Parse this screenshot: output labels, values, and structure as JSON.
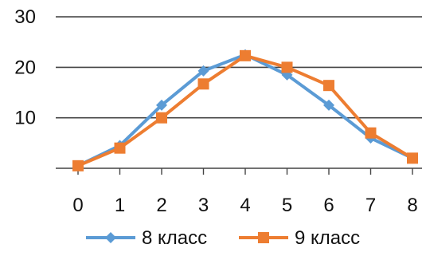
{
  "chart_data": {
    "type": "line",
    "title": "",
    "xlabel": "",
    "ylabel": "",
    "categories": [
      "0",
      "1",
      "2",
      "3",
      "4",
      "5",
      "6",
      "7",
      "8"
    ],
    "y_ticks": [
      "10",
      "20",
      "30"
    ],
    "ylim": [
      0,
      30
    ],
    "grid": "horizontal",
    "legend": "bottom",
    "series": [
      {
        "name": "8 класс",
        "color": "#5B9BD5",
        "marker": "diamond",
        "values": [
          0.5,
          4.5,
          12.5,
          19.3,
          22.5,
          18.5,
          12.5,
          6.0,
          2.0
        ]
      },
      {
        "name": "9 класс",
        "color": "#ED7D31",
        "marker": "square",
        "values": [
          0.5,
          4.0,
          10.0,
          16.7,
          22.3,
          20.0,
          16.4,
          7.0,
          2.0
        ]
      }
    ]
  }
}
